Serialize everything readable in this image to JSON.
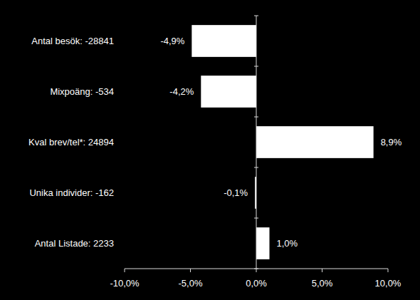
{
  "chart_data": {
    "type": "bar",
    "orientation": "horizontal",
    "categories": [
      "Antal besök: -28841",
      "Mixpoäng: -534",
      "Kval brev/tel*: 24894",
      "Unika individer: -162",
      "Antal Listade: 2233"
    ],
    "values": [
      -4.9,
      -4.2,
      8.9,
      -0.1,
      1.0
    ],
    "value_labels": [
      "-4,9%",
      "-4,2%",
      "8,9%",
      "-0,1%",
      "1,0%"
    ],
    "color": "#ffffff",
    "data_labels": true,
    "grid": false,
    "xlim": [
      -10,
      10
    ],
    "xticks": [
      {
        "value": -10,
        "label": "-10,0%"
      },
      {
        "value": -5,
        "label": "-5,0%"
      },
      {
        "value": 0,
        "label": "0,0%"
      },
      {
        "value": 5,
        "label": "5,0%"
      },
      {
        "value": 10,
        "label": "10,0%"
      }
    ]
  }
}
